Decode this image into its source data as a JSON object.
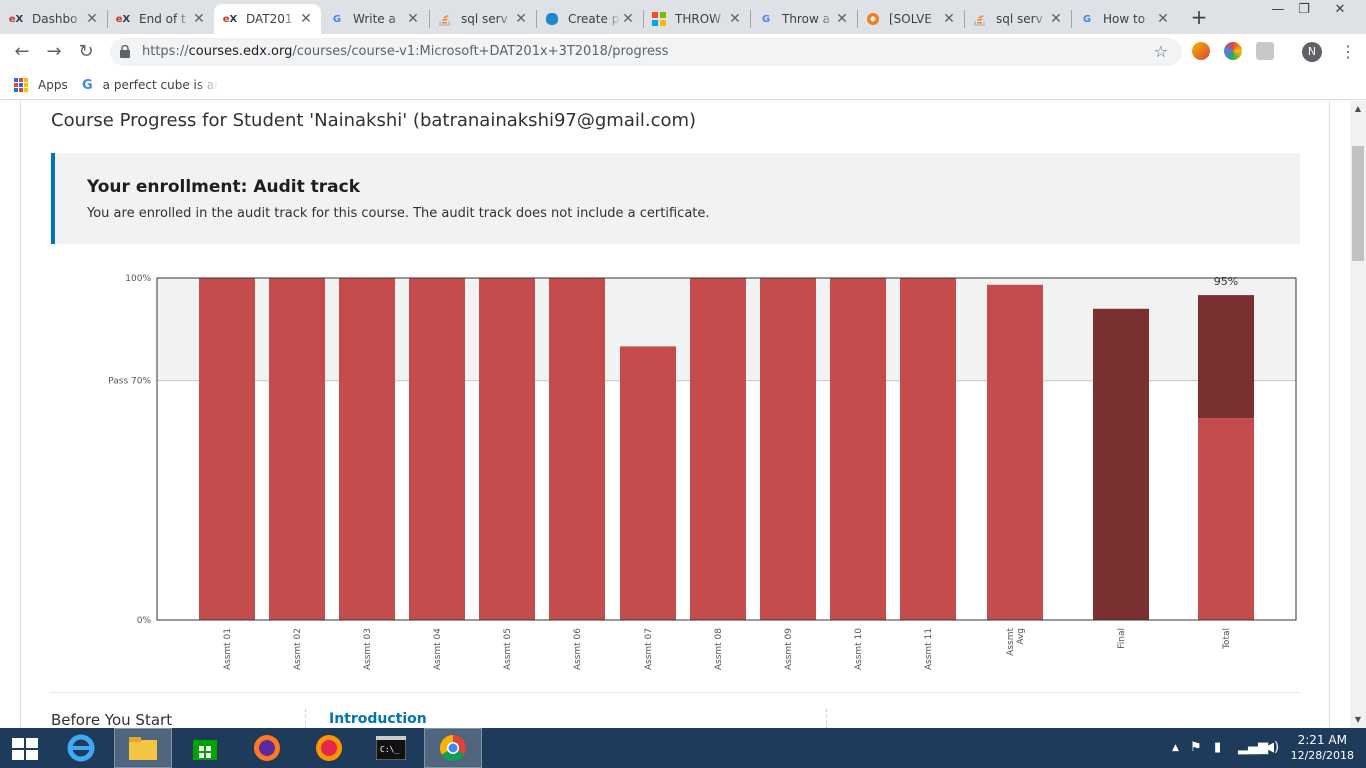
{
  "tabs": [
    {
      "title": "Dashbo",
      "favicon": "edx-logo-icon"
    },
    {
      "title": "End of t",
      "favicon": "edx-logo-icon"
    },
    {
      "title": "DAT201",
      "favicon": "edx-logo-icon",
      "active": true
    },
    {
      "title": "Write a",
      "favicon": "google-icon"
    },
    {
      "title": "sql serv",
      "favicon": "stackoverflow-icon"
    },
    {
      "title": "Create p",
      "favicon": "database-icon"
    },
    {
      "title": "THROW",
      "favicon": "microsoft-icon"
    },
    {
      "title": "Throw a",
      "favicon": "google-icon"
    },
    {
      "title": "[SOLVE",
      "favicon": "solved-icon"
    },
    {
      "title": "sql serv",
      "favicon": "stackoverflow-icon"
    },
    {
      "title": "How to",
      "favicon": "google-icon"
    }
  ],
  "address": {
    "scheme": "https://",
    "host": "courses.edx.org",
    "path": "/courses/course-v1:Microsoft+DAT201x+3T2018/progress"
  },
  "profile_initial": "N",
  "bookmarks": {
    "apps_label": "Apps",
    "item_label": "a perfect cube is an i"
  },
  "page": {
    "title": "Course Progress for Student 'Nainakshi' (batranainakshi97@gmail.com)",
    "enrollment_title": "Your enrollment: Audit track",
    "enrollment_message": "You are enrolled in the audit track for this course. The audit track does not include a certificate."
  },
  "colors": {
    "bar": "#c44c4c",
    "bar_dark": "#7a3030",
    "accent": "#0075b4",
    "band": "#f2f2f2"
  },
  "chart_data": {
    "type": "bar",
    "categories": [
      "Assmt 01",
      "Assmt 02",
      "Assmt 03",
      "Assmt 04",
      "Assmt 05",
      "Assmt 06",
      "Assmt 07",
      "Assmt 08",
      "Assmt 09",
      "Assmt 10",
      "Assmt 11",
      "Assmt Avg",
      "Final",
      "Total"
    ],
    "values": [
      100,
      100,
      100,
      100,
      100,
      100,
      80,
      100,
      100,
      100,
      100,
      98,
      91,
      95
    ],
    "total_breakdown": {
      "assignments": 59,
      "final": 36
    },
    "y_ticks": [
      {
        "value": 0,
        "label": "0%"
      },
      {
        "value": 70,
        "label": "Pass 70%"
      },
      {
        "value": 100,
        "label": "100%"
      }
    ],
    "total_label": "95%",
    "ylim": [
      0,
      100
    ]
  },
  "course_nav": {
    "left_heading": "Before You Start",
    "link": "Introduction"
  },
  "taskbar": {
    "apps": [
      "internet-explorer-icon",
      "file-explorer-icon",
      "store-icon",
      "firefox-icon",
      "firefox-icon",
      "command-prompt-icon",
      "chrome-icon"
    ],
    "time": "2:21 AM",
    "date": "12/28/2018"
  }
}
